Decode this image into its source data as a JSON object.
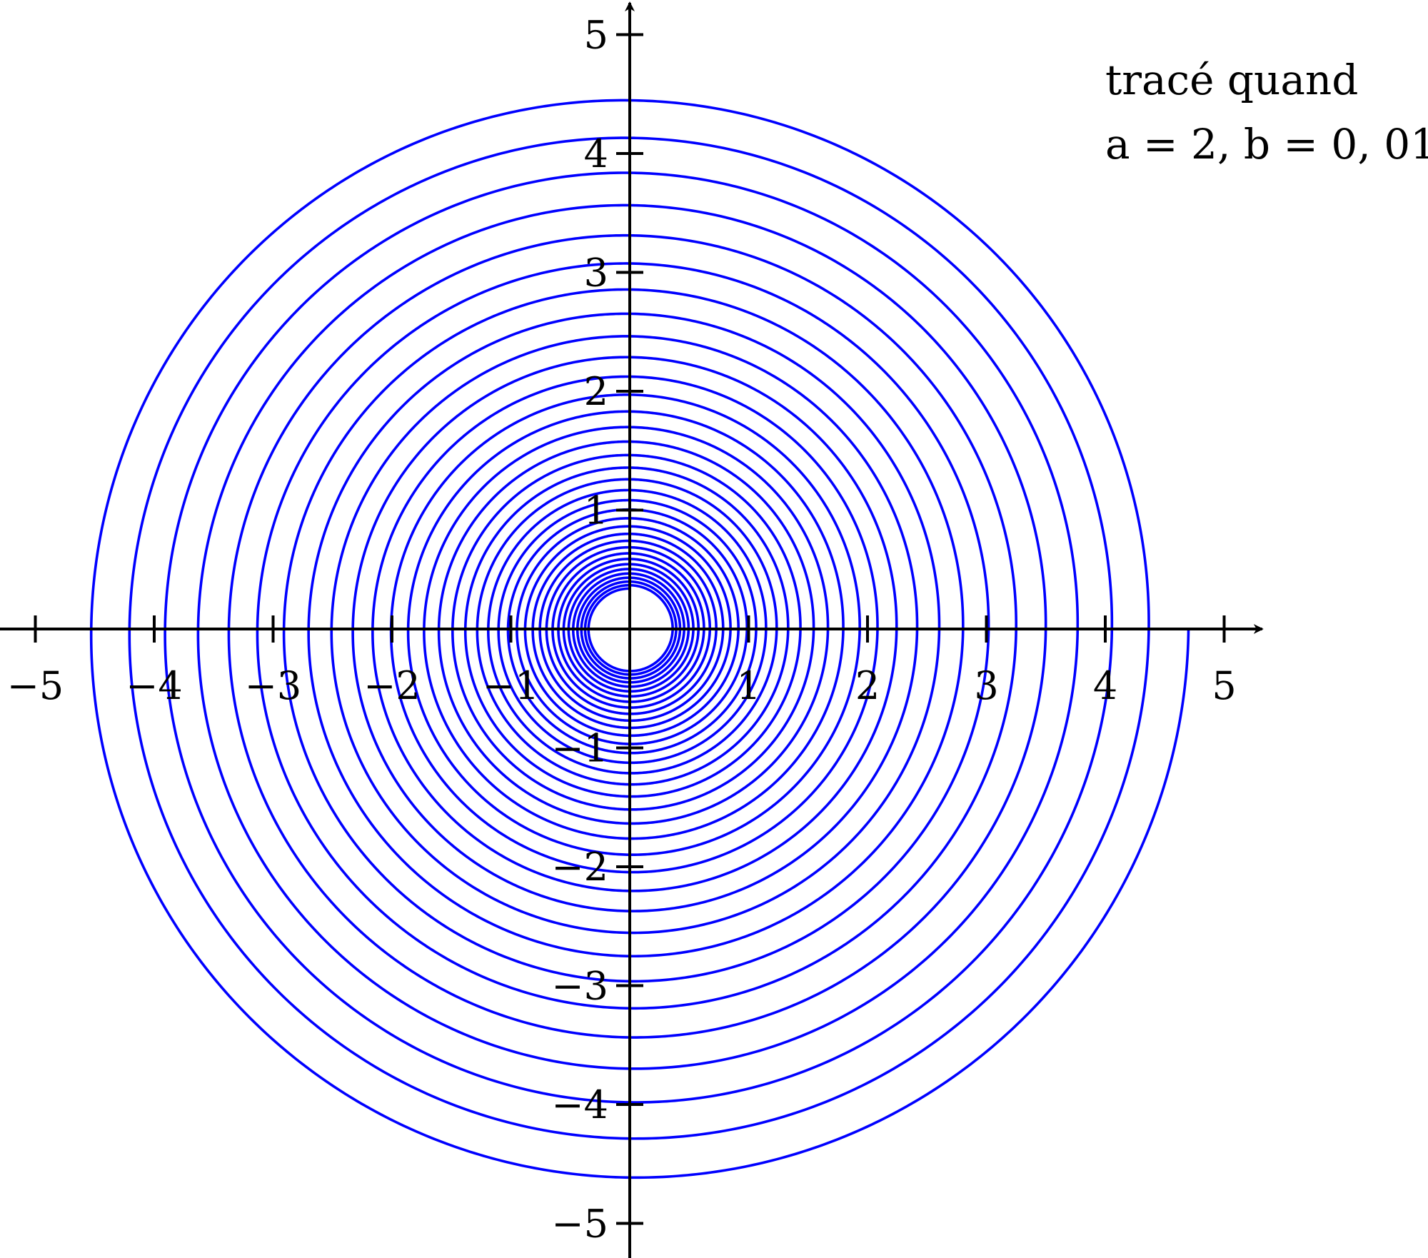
{
  "chart_data": {
    "type": "line",
    "title": "",
    "xlabel": "",
    "ylabel": "",
    "xlim": [
      -5.3,
      5.3
    ],
    "ylim": [
      -5.3,
      5.3
    ],
    "grid": false,
    "x_ticks": [
      -5,
      -4,
      -3,
      -2,
      -1,
      1,
      2,
      3,
      4,
      5
    ],
    "y_ticks": [
      -5,
      -4,
      -3,
      -2,
      -1,
      1,
      2,
      3,
      4,
      5
    ],
    "x_tick_labels": [
      "−5",
      "−4",
      "−3",
      "−2",
      "−1",
      "1",
      "2",
      "3",
      "4",
      "5"
    ],
    "y_tick_labels": [
      "−5",
      "−4",
      "−3",
      "−2",
      "−1",
      "1",
      "2",
      "3",
      "4",
      "5"
    ],
    "series": [
      {
        "curve": "spiral",
        "color": "#0000ff",
        "r_start": 0.34,
        "r_end": 4.7,
        "theta_start_deg": 90,
        "turns": 34.75,
        "turn_ratio": 1.0759
      }
    ],
    "annotation": {
      "line1": "tracé quand",
      "line2": "a = 2, b = 0, 01"
    }
  }
}
